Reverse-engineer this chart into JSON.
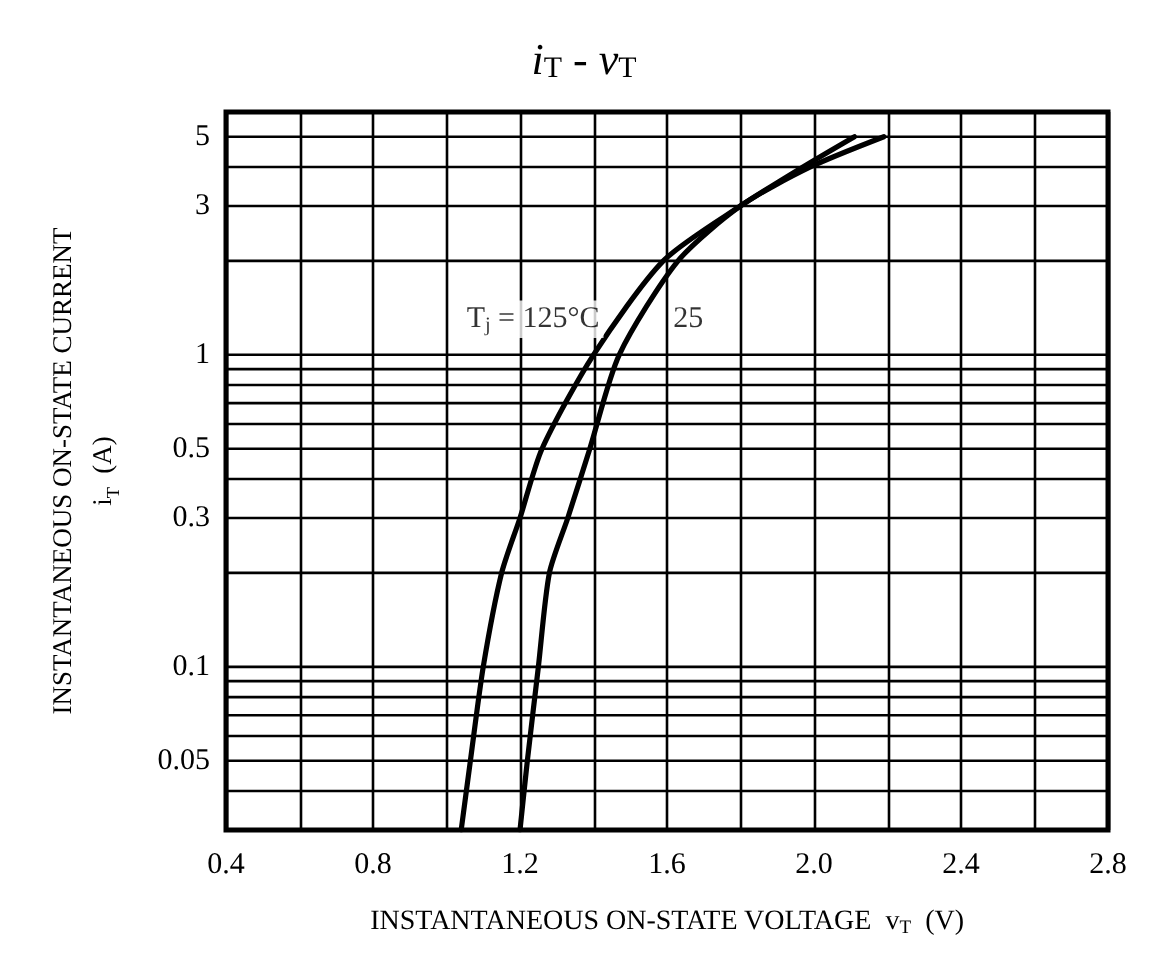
{
  "chart_data": {
    "type": "line",
    "title": "i$_{T}$ - v$_{T}$",
    "xlabel": "INSTANTANEOUS ON-STATE VOLTAGE  v$_{T}$  (V)",
    "ylabel": "INSTANTANEOUS ON-STATE CURRENT\ni$_{T}$  (A)",
    "series": [
      {
        "color": "#000000",
        "x": [
          1.04,
          1.065,
          1.1,
          1.15,
          1.2,
          1.26,
          1.4,
          1.59,
          1.8,
          1.97,
          2.11
        ],
        "values": [
          0.03,
          0.05,
          0.1,
          0.2,
          0.3,
          0.5,
          1,
          2,
          3,
          4,
          5
        ]
      },
      {
        "color": "#000000",
        "x": [
          1.2,
          1.22,
          1.25,
          1.28,
          1.33,
          1.39,
          1.47,
          1.63,
          1.8,
          1.99,
          2.19
        ],
        "values": [
          0.03,
          0.05,
          0.1,
          0.2,
          0.3,
          0.5,
          1,
          2,
          3,
          4,
          5
        ]
      }
    ],
    "annotations": [
      {
        "text": "T$_{j}$ = 125°C",
        "x": 1.46,
        "y": 1.3
      },
      {
        "text": "25",
        "x": 1.53,
        "y": 1.3
      }
    ],
    "xlim": [
      0.4,
      2.8
    ],
    "xticks": [
      0.4,
      0.8,
      1.2,
      1.6,
      {
        "value": 2,
        "label": "2.0"
      },
      2.4,
      2.8
    ],
    "ylim": [
      0.03,
      6
    ],
    "yticks": [
      0.05,
      0.1,
      0.3,
      0.5,
      1,
      3,
      5
    ],
    "log": "y",
    "grid": true,
    "marker": "none",
    "line_style": "solid"
  }
}
